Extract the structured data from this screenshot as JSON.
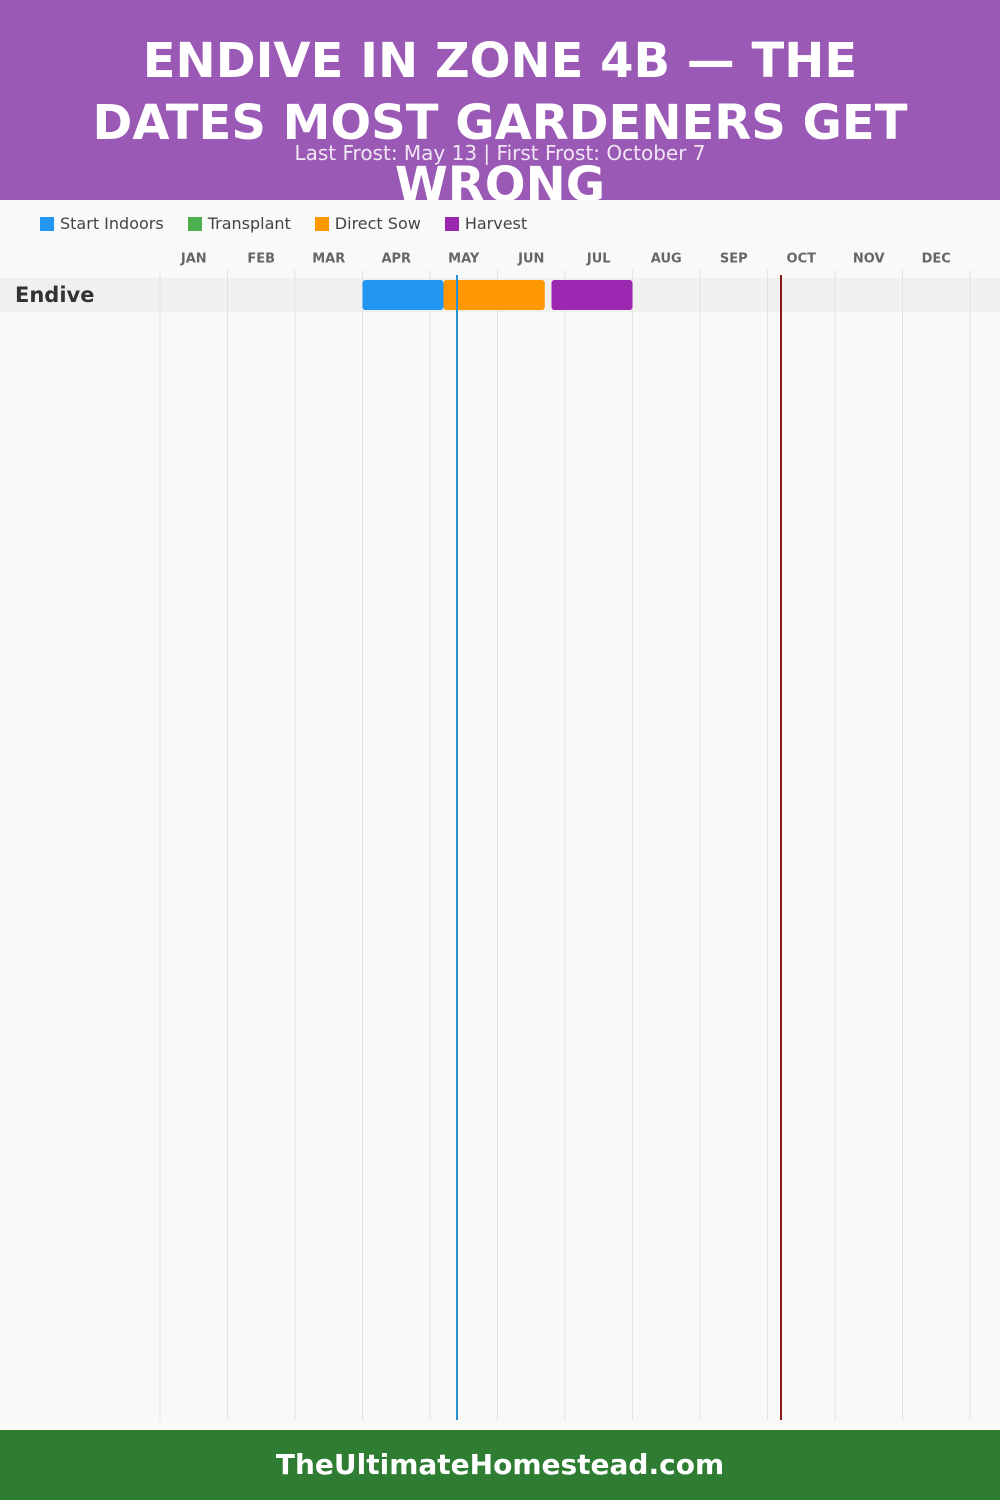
{
  "chart_data": {
    "type": "gantt",
    "title": "ENDIVE IN ZONE 4B — THE DATES MOST GARDENERS GET WRONG",
    "subtitle": "Last Frost: May 13 | First Frost: October 7",
    "months": [
      "JAN",
      "FEB",
      "MAR",
      "APR",
      "MAY",
      "JUN",
      "JUL",
      "AUG",
      "SEP",
      "OCT",
      "NOV",
      "DEC"
    ],
    "xlim": [
      0,
      12
    ],
    "categories": [
      "Endive"
    ],
    "series": [
      {
        "name": "Start Indoors",
        "color": "#2196f3",
        "values": [
          [
            3.0,
            4.2
          ]
        ]
      },
      {
        "name": "Transplant",
        "color": "#4caf50",
        "values": [
          null
        ]
      },
      {
        "name": "Direct Sow",
        "color": "#ff9800",
        "values": [
          [
            4.2,
            5.7
          ]
        ]
      },
      {
        "name": "Harvest",
        "color": "#9c27b0",
        "values": [
          [
            5.8,
            7.0
          ]
        ]
      }
    ],
    "frost_lines": [
      {
        "value": 4.4,
        "color": "#2b8fd6"
      },
      {
        "value": 9.2,
        "color": "#8b1a1a"
      }
    ],
    "footer": "TheUltimateHomestead.com"
  }
}
